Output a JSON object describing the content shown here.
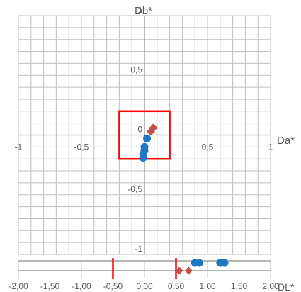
{
  "chart_data": [
    {
      "type": "scatter",
      "title": "",
      "xlabel": "Da*",
      "ylabel": "Db*",
      "xlim": [
        -1,
        1
      ],
      "ylim": [
        -1,
        1
      ],
      "grid": true,
      "grid_step": 0.1,
      "x_tick_labels": [
        {
          "value": -1,
          "label": "-1"
        },
        {
          "value": -0.5,
          "label": "-0,5"
        },
        {
          "value": 0.5,
          "label": "0,5"
        },
        {
          "value": 1,
          "label": "1"
        }
      ],
      "y_tick_labels": [
        {
          "value": 1,
          "label": "1"
        },
        {
          "value": 0.5,
          "label": "0,5"
        },
        {
          "value": 0,
          "label": "0"
        },
        {
          "value": -0.5,
          "label": "-0,5"
        },
        {
          "value": -1,
          "label": "-1"
        }
      ],
      "tolerance_box": {
        "x": [
          -0.2,
          0.2
        ],
        "y": [
          -0.2,
          0.2
        ],
        "color": "#ff0000"
      },
      "series": [
        {
          "marker": "circle",
          "color": "#1f77c4",
          "points": [
            [
              0.02,
              -0.03
            ],
            [
              0.0,
              -0.1
            ],
            [
              0.0,
              -0.13
            ],
            [
              -0.01,
              -0.16
            ],
            [
              -0.01,
              -0.19
            ]
          ]
        },
        {
          "marker": "diamond",
          "color": "#c0504d",
          "points": [
            [
              0.07,
              0.06
            ],
            [
              0.05,
              0.03
            ]
          ]
        }
      ]
    },
    {
      "type": "scatter",
      "title": "",
      "xlabel": "DL*",
      "ylabel": "",
      "xlim": [
        -2,
        2
      ],
      "grid": true,
      "x_tick_labels": [
        "-2,00",
        "-1,50",
        "-1,00",
        "-0,50",
        "0,00",
        "0,50",
        "1,00",
        "1,50",
        "2,00"
      ],
      "x_tick_values": [
        -2,
        -1.5,
        -1,
        -0.5,
        0,
        0.5,
        1,
        1.5,
        2
      ],
      "tolerance_lines": [
        -0.5,
        0.5
      ],
      "tolerance_color": "#ff0000",
      "series": [
        {
          "marker": "circle",
          "color": "#1f77c4",
          "x": [
            0.8,
            0.87,
            1.2,
            1.27
          ]
        },
        {
          "marker": "diamond",
          "color": "#c0504d",
          "x": [
            0.55,
            0.7
          ]
        }
      ]
    }
  ]
}
